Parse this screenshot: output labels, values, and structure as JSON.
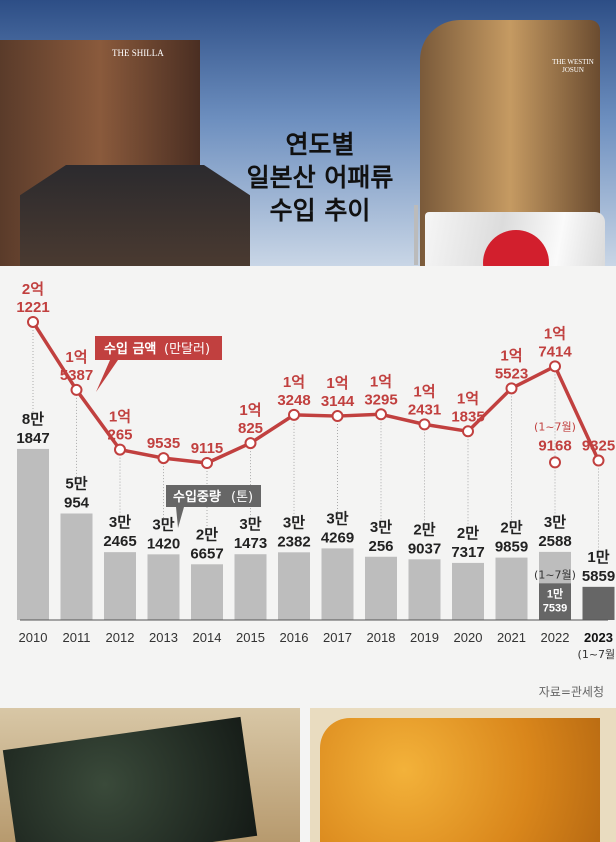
{
  "title": [
    "연도별",
    "일본산 어패류",
    "수입 추이"
  ],
  "hotel_signs": {
    "left": "THE SHILLA",
    "right": "THE WESTIN JOSUN"
  },
  "source": "자료=관세청",
  "colors": {
    "line": "#c1403f",
    "bar": "#bdbdbd",
    "bar_dark": "#666666",
    "label_amount": "#c1403f"
  },
  "chart_data": {
    "type": "bar+line",
    "categories": [
      "2010",
      "2011",
      "2012",
      "2013",
      "2014",
      "2015",
      "2016",
      "2017",
      "2018",
      "2019",
      "2020",
      "2021",
      "2022",
      "2023"
    ],
    "category_note_2023": "(1~7월)",
    "series": [
      {
        "name": "수입 금액(만달러)",
        "type": "line",
        "values": [
          21221,
          15387,
          10265,
          9535,
          9115,
          10825,
          13248,
          13144,
          13295,
          12431,
          11835,
          15523,
          17414,
          9325
        ],
        "labels": [
          [
            "2억",
            "1221"
          ],
          [
            "1억",
            "5387"
          ],
          [
            "1억",
            "265"
          ],
          [
            "",
            "9535"
          ],
          [
            "",
            "9115"
          ],
          [
            "1억",
            "825"
          ],
          [
            "1억",
            "3248"
          ],
          [
            "1억",
            "3144"
          ],
          [
            "1억",
            "3295"
          ],
          [
            "1억",
            "2431"
          ],
          [
            "1억",
            "1835"
          ],
          [
            "1억",
            "5523"
          ],
          [
            "1억",
            "7414"
          ],
          [
            "",
            "9325"
          ]
        ]
      },
      {
        "name": "수입중량(톤)",
        "type": "bar",
        "values": [
          81847,
          50954,
          32465,
          31420,
          26657,
          31473,
          32382,
          34269,
          30256,
          29037,
          27317,
          29859,
          32588,
          15859
        ],
        "labels": [
          [
            "8만",
            "1847"
          ],
          [
            "5만",
            "954"
          ],
          [
            "3만",
            "2465"
          ],
          [
            "3만",
            "1420"
          ],
          [
            "2만",
            "6657"
          ],
          [
            "3만",
            "1473"
          ],
          [
            "3만",
            "2382"
          ],
          [
            "3만",
            "4269"
          ],
          [
            "3만",
            "256"
          ],
          [
            "2만",
            "9037"
          ],
          [
            "2만",
            "7317"
          ],
          [
            "2만",
            "9859"
          ],
          [
            "3만",
            "2588"
          ],
          [
            "1만",
            "5859"
          ]
        ]
      }
    ],
    "partial_2022": {
      "note": "(1~7월)",
      "amount": 9168,
      "amount_label": "9168",
      "weight": 17539,
      "weight_labels": [
        "1만",
        "7539"
      ]
    },
    "legend": {
      "amount": "수입 금액",
      "amount_unit": "(만달러)",
      "weight": "수입중량",
      "weight_unit": "(톤)"
    }
  }
}
